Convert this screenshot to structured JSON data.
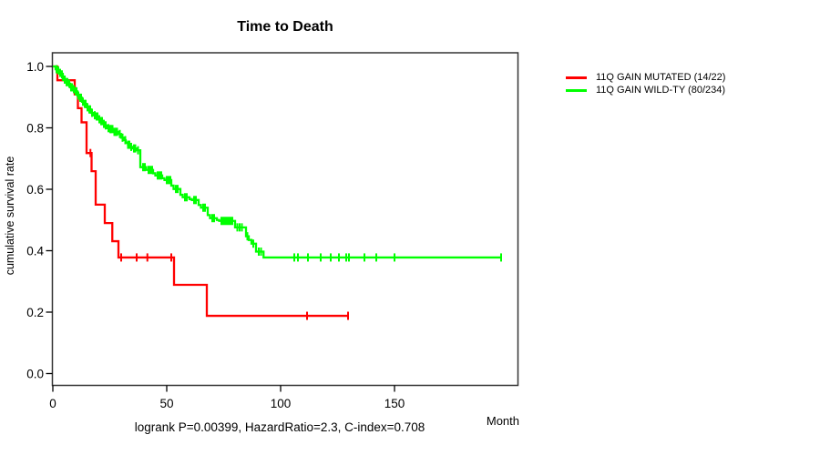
{
  "chart_data": {
    "type": "line",
    "subtype": "kaplan-meier-survival-step",
    "title": "Time to Death",
    "xlabel": "Month",
    "ylabel": "cumulative survival rate",
    "annotation": "logrank P=0.00399, HazardRatio=2.3, C-index=0.708",
    "xlim": [
      0,
      204
    ],
    "ylim": [
      0,
      1
    ],
    "grid": false,
    "legend_position": "right-outside",
    "x_ticks": [
      {
        "v": 0,
        "label": "0"
      },
      {
        "v": 50,
        "label": "50"
      },
      {
        "v": 100,
        "label": "100"
      },
      {
        "v": 150,
        "label": "150"
      }
    ],
    "y_ticks": [
      {
        "v": 0.0,
        "label": "0.0"
      },
      {
        "v": 0.2,
        "label": "0.2"
      },
      {
        "v": 0.4,
        "label": "0.4"
      },
      {
        "v": 0.6,
        "label": "0.6"
      },
      {
        "v": 0.8,
        "label": "0.8"
      },
      {
        "v": 1.0,
        "label": "1.0"
      }
    ],
    "series": [
      {
        "name": "11Q GAIN MUTATED (14/22)",
        "color": "#ff0000",
        "end_month": 129.6,
        "steps": [
          [
            0,
            1.0
          ],
          [
            2.0,
            0.955
          ],
          [
            9.6,
            0.909
          ],
          [
            11.0,
            0.864
          ],
          [
            12.6,
            0.818
          ],
          [
            14.8,
            0.718
          ],
          [
            17.0,
            0.659
          ],
          [
            18.8,
            0.55
          ],
          [
            22.8,
            0.49
          ],
          [
            26.1,
            0.431
          ],
          [
            28.8,
            0.378
          ],
          [
            53.2,
            0.289
          ],
          [
            67.6,
            0.188
          ]
        ],
        "censor_months": [
          16.5,
          30.0,
          36.8,
          41.5,
          52.0,
          111.6,
          129.6
        ]
      },
      {
        "name": "11Q GAIN WILD-TY (80/234)",
        "color": "#00ff00",
        "end_month": 196.8,
        "steps": [
          [
            0,
            1.0
          ],
          [
            1.2,
            0.991
          ],
          [
            2.0,
            0.987
          ],
          [
            2.8,
            0.979
          ],
          [
            3.6,
            0.974
          ],
          [
            4.4,
            0.966
          ],
          [
            5.2,
            0.957
          ],
          [
            6.0,
            0.949
          ],
          [
            6.8,
            0.944
          ],
          [
            7.6,
            0.932
          ],
          [
            8.8,
            0.926
          ],
          [
            9.6,
            0.919
          ],
          [
            10.8,
            0.905
          ],
          [
            11.6,
            0.898
          ],
          [
            12.8,
            0.885
          ],
          [
            13.6,
            0.878
          ],
          [
            14.8,
            0.867
          ],
          [
            15.6,
            0.86
          ],
          [
            16.8,
            0.849
          ],
          [
            18.0,
            0.841
          ],
          [
            18.8,
            0.837
          ],
          [
            20.0,
            0.828
          ],
          [
            20.8,
            0.822
          ],
          [
            22.0,
            0.813
          ],
          [
            22.8,
            0.808
          ],
          [
            24.0,
            0.799
          ],
          [
            24.8,
            0.796
          ],
          [
            26.8,
            0.787
          ],
          [
            28.8,
            0.78
          ],
          [
            30.0,
            0.768
          ],
          [
            31.0,
            0.76
          ],
          [
            32.0,
            0.751
          ],
          [
            33.0,
            0.745
          ],
          [
            34.0,
            0.738
          ],
          [
            35.2,
            0.733
          ],
          [
            36.8,
            0.727
          ],
          [
            38.4,
            0.672
          ],
          [
            41.0,
            0.663
          ],
          [
            44.0,
            0.652
          ],
          [
            45.0,
            0.645
          ],
          [
            48.0,
            0.636
          ],
          [
            49.0,
            0.63
          ],
          [
            52.0,
            0.612
          ],
          [
            53.0,
            0.601
          ],
          [
            56.0,
            0.582
          ],
          [
            57.0,
            0.574
          ],
          [
            60.0,
            0.568
          ],
          [
            61.0,
            0.565
          ],
          [
            64.0,
            0.549
          ],
          [
            65.0,
            0.54
          ],
          [
            68.0,
            0.516
          ],
          [
            69.0,
            0.506
          ],
          [
            72.0,
            0.5
          ],
          [
            73.0,
            0.497
          ],
          [
            80.0,
            0.476
          ],
          [
            84.8,
            0.447
          ],
          [
            86.0,
            0.435
          ],
          [
            87.2,
            0.423
          ],
          [
            89.2,
            0.397
          ],
          [
            92.5,
            0.378
          ]
        ],
        "censor_months": [
          1.6,
          2.4,
          3.2,
          4.0,
          4.4,
          5.2,
          6.0,
          6.4,
          7.2,
          8.0,
          8.4,
          9.2,
          10.0,
          10.4,
          11.2,
          12.0,
          12.4,
          13.2,
          14.0,
          14.4,
          15.2,
          16.0,
          16.4,
          17.2,
          18.4,
          19.2,
          19.6,
          20.4,
          21.2,
          21.6,
          22.4,
          23.2,
          24.4,
          25.2,
          25.6,
          26.2,
          27.0,
          27.6,
          28.2,
          29.4,
          30.6,
          31.8,
          33.0,
          33.6,
          34.4,
          35.6,
          36.2,
          37.4,
          39.6,
          40.4,
          42.0,
          42.8,
          43.6,
          46.0,
          46.8,
          47.6,
          50.0,
          50.8,
          51.6,
          54.0,
          54.8,
          58.0,
          58.8,
          62.0,
          62.8,
          66.0,
          66.8,
          70.0,
          70.8,
          74.0,
          74.8,
          75.6,
          76.4,
          77.2,
          78.0,
          78.8,
          81.0,
          82.0,
          83.0,
          85.4,
          88.0,
          90.4,
          91.4,
          106.0,
          107.6,
          112.0,
          117.6,
          122.0,
          125.6,
          128.8,
          130.0,
          136.8,
          142.0,
          150.0,
          196.8
        ]
      }
    ]
  }
}
